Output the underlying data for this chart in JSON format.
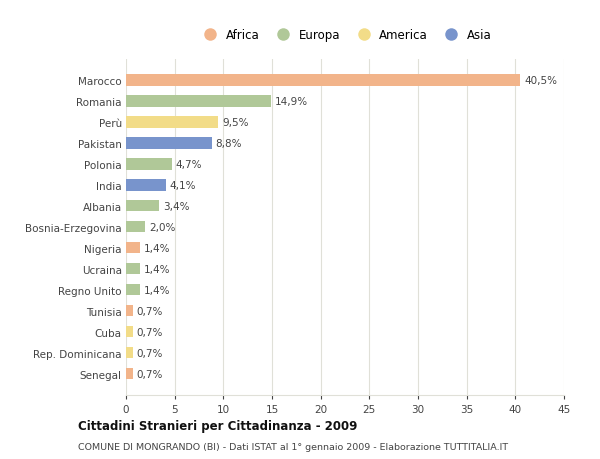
{
  "countries": [
    "Marocco",
    "Romania",
    "Perù",
    "Pakistan",
    "Polonia",
    "India",
    "Albania",
    "Bosnia-Erzegovina",
    "Nigeria",
    "Ucraina",
    "Regno Unito",
    "Tunisia",
    "Cuba",
    "Rep. Dominicana",
    "Senegal"
  ],
  "values": [
    40.5,
    14.9,
    9.5,
    8.8,
    4.7,
    4.1,
    3.4,
    2.0,
    1.4,
    1.4,
    1.4,
    0.7,
    0.7,
    0.7,
    0.7
  ],
  "labels": [
    "40,5%",
    "14,9%",
    "9,5%",
    "8,8%",
    "4,7%",
    "4,1%",
    "3,4%",
    "2,0%",
    "1,4%",
    "1,4%",
    "1,4%",
    "0,7%",
    "0,7%",
    "0,7%",
    "0,7%"
  ],
  "continents": [
    "Africa",
    "Europa",
    "America",
    "Asia",
    "Europa",
    "Asia",
    "Europa",
    "Europa",
    "Africa",
    "Europa",
    "Europa",
    "Africa",
    "America",
    "America",
    "Africa"
  ],
  "colors": {
    "Africa": "#F2B48A",
    "Europa": "#B0C898",
    "America": "#F2DC88",
    "Asia": "#7894CC"
  },
  "legend_order": [
    "Africa",
    "Europa",
    "America",
    "Asia"
  ],
  "title": "Cittadini Stranieri per Cittadinanza - 2009",
  "subtitle": "COMUNE DI MONGRANDO (BI) - Dati ISTAT al 1° gennaio 2009 - Elaborazione TUTTITALIA.IT",
  "xlim": [
    0,
    45
  ],
  "xticks": [
    0,
    5,
    10,
    15,
    20,
    25,
    30,
    35,
    40,
    45
  ],
  "bg_color": "#FFFFFF",
  "grid_color": "#E0E0D8"
}
